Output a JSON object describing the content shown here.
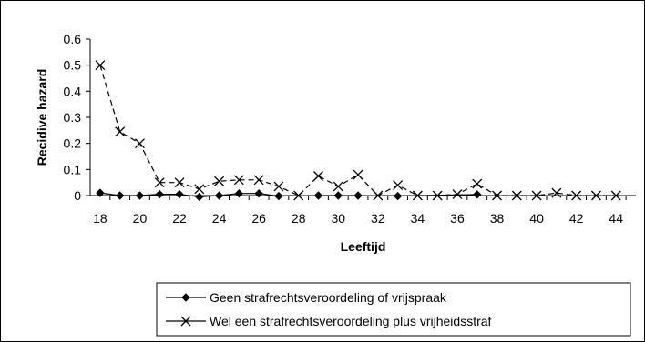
{
  "chart_data": {
    "type": "line",
    "title": "",
    "xlabel": "Leeftijd",
    "ylabel": "Recidive hazard",
    "xlim": [
      17.5,
      45
    ],
    "ylim": [
      0,
      0.6
    ],
    "x_ticks": [
      18,
      20,
      22,
      24,
      26,
      28,
      30,
      32,
      34,
      36,
      38,
      40,
      42,
      44
    ],
    "y_ticks": [
      "0",
      "0.1",
      "0.2",
      "0.3",
      "0.4",
      "0.5",
      "0.6"
    ],
    "grid": false,
    "legend_position": "bottom",
    "series": [
      {
        "name": "Geen strafrechtsveroordeling of vrijspraak",
        "marker": "diamond",
        "color": "#000000",
        "x": [
          18,
          19,
          20,
          21,
          22,
          23,
          24,
          25,
          26,
          27,
          29,
          30,
          31,
          33,
          37
        ],
        "y": [
          0.01,
          0,
          0,
          0.005,
          0.005,
          -0.005,
          0,
          0.008,
          0.008,
          -0.002,
          0,
          0,
          0,
          -0.002,
          0.004
        ]
      },
      {
        "name": "Wel een strafrechtsveroordeling plus vrijheidsstraf",
        "marker": "x",
        "color": "#000000",
        "x": [
          18,
          19,
          20,
          21,
          22,
          23,
          24,
          25,
          26,
          27,
          28,
          29,
          30,
          31,
          32,
          33,
          34,
          35,
          36,
          37,
          38,
          39,
          40,
          41,
          42,
          43,
          44
        ],
        "y": [
          0.5,
          0.245,
          0.2,
          0.05,
          0.05,
          0.025,
          0.055,
          0.06,
          0.06,
          0.035,
          0,
          0.075,
          0.035,
          0.08,
          0,
          0.04,
          0,
          0,
          0.005,
          0.045,
          0,
          0,
          0,
          0.01,
          0,
          0,
          0
        ]
      }
    ]
  }
}
